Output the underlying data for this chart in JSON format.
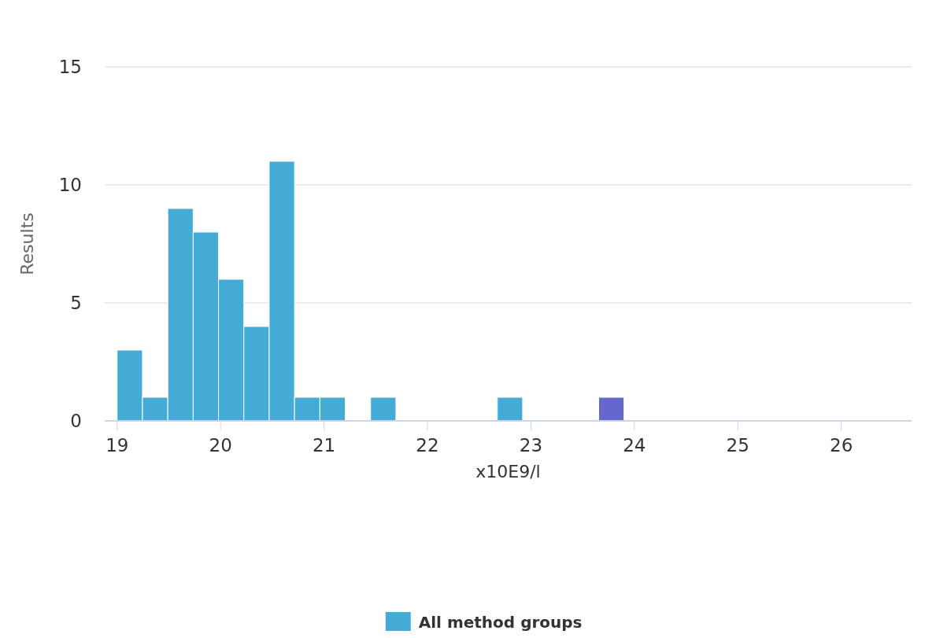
{
  "chart_data": {
    "type": "histogram",
    "xlabel": "x10E9/l",
    "ylabel": "Results",
    "bins": [
      19,
      19.245,
      19.49,
      19.735,
      19.98,
      20.225,
      20.47,
      20.715,
      20.96,
      21.205,
      21.45,
      21.695,
      21.94,
      22.185,
      22.43,
      22.675,
      22.92,
      23.165,
      23.41,
      23.655,
      23.9
    ],
    "series": [
      {
        "name": "All method groups",
        "color": "#44aad6",
        "values": [
          3,
          1,
          9,
          8,
          6,
          4,
          11,
          1,
          1,
          0,
          1,
          0,
          0,
          0,
          0,
          1,
          0,
          0,
          0,
          0
        ]
      },
      {
        "color": "#6666cc",
        "values": [
          0,
          0,
          0,
          0,
          0,
          0,
          0,
          0,
          0,
          0,
          0,
          0,
          0,
          0,
          0,
          0,
          0,
          0,
          0,
          1
        ]
      }
    ],
    "xlim": [
      18.88,
      26.68
    ],
    "xticks": [
      19,
      20,
      21,
      22,
      23,
      24,
      25,
      26
    ],
    "ylim": [
      0,
      15
    ],
    "yticks": [
      0,
      5,
      10,
      15
    ],
    "grid": "y",
    "legend": "bottom"
  }
}
